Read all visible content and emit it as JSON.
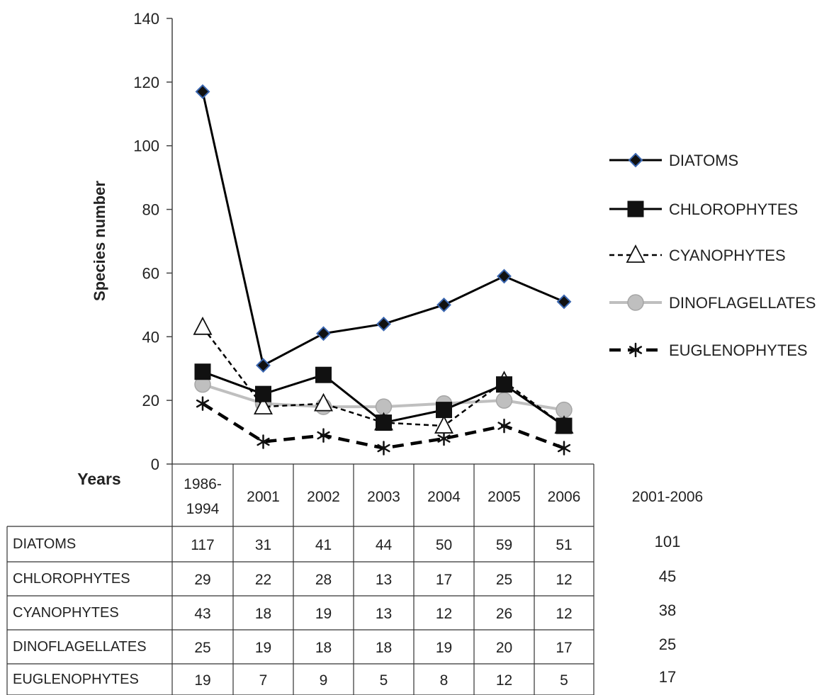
{
  "chart_data": {
    "type": "line",
    "ylabel": "Species number",
    "ylim": [
      0,
      140
    ],
    "yticks": [
      "0",
      "20",
      "40",
      "60",
      "80",
      "100",
      "120",
      "140"
    ],
    "grid": false,
    "legend_position": "right",
    "categories": [
      "1986-1994",
      "2001",
      "2002",
      "2003",
      "2004",
      "2005",
      "2006"
    ],
    "series": [
      {
        "name": "DIATOMS",
        "values": [
          117,
          31,
          41,
          44,
          50,
          59,
          51
        ],
        "color": "#000000",
        "marker": "diamond",
        "dash": "solid"
      },
      {
        "name": "CHLOROPHYTES",
        "values": [
          29,
          22,
          28,
          13,
          17,
          25,
          12
        ],
        "color": "#000000",
        "marker": "square",
        "dash": "solid"
      },
      {
        "name": "CYANOPHYTES",
        "values": [
          43,
          18,
          19,
          13,
          12,
          26,
          12
        ],
        "color": "#000000",
        "marker": "triangle",
        "dash": "short-dash"
      },
      {
        "name": "DINOFLAGELLATES",
        "values": [
          25,
          19,
          18,
          18,
          19,
          20,
          17
        ],
        "color": "#bfbfbf",
        "marker": "circle",
        "dash": "solid"
      },
      {
        "name": "EUGLENOPHYTES",
        "values": [
          19,
          7,
          9,
          5,
          8,
          12,
          5
        ],
        "color": "#000000",
        "marker": "asterisk",
        "dash": "long-dash"
      }
    ],
    "table": {
      "header_label": "Years",
      "period_columns": [
        "1986-",
        "1994"
      ],
      "totals_header": "2001-2006",
      "totals": [
        "101",
        "45",
        "38",
        "25",
        "17"
      ]
    }
  }
}
